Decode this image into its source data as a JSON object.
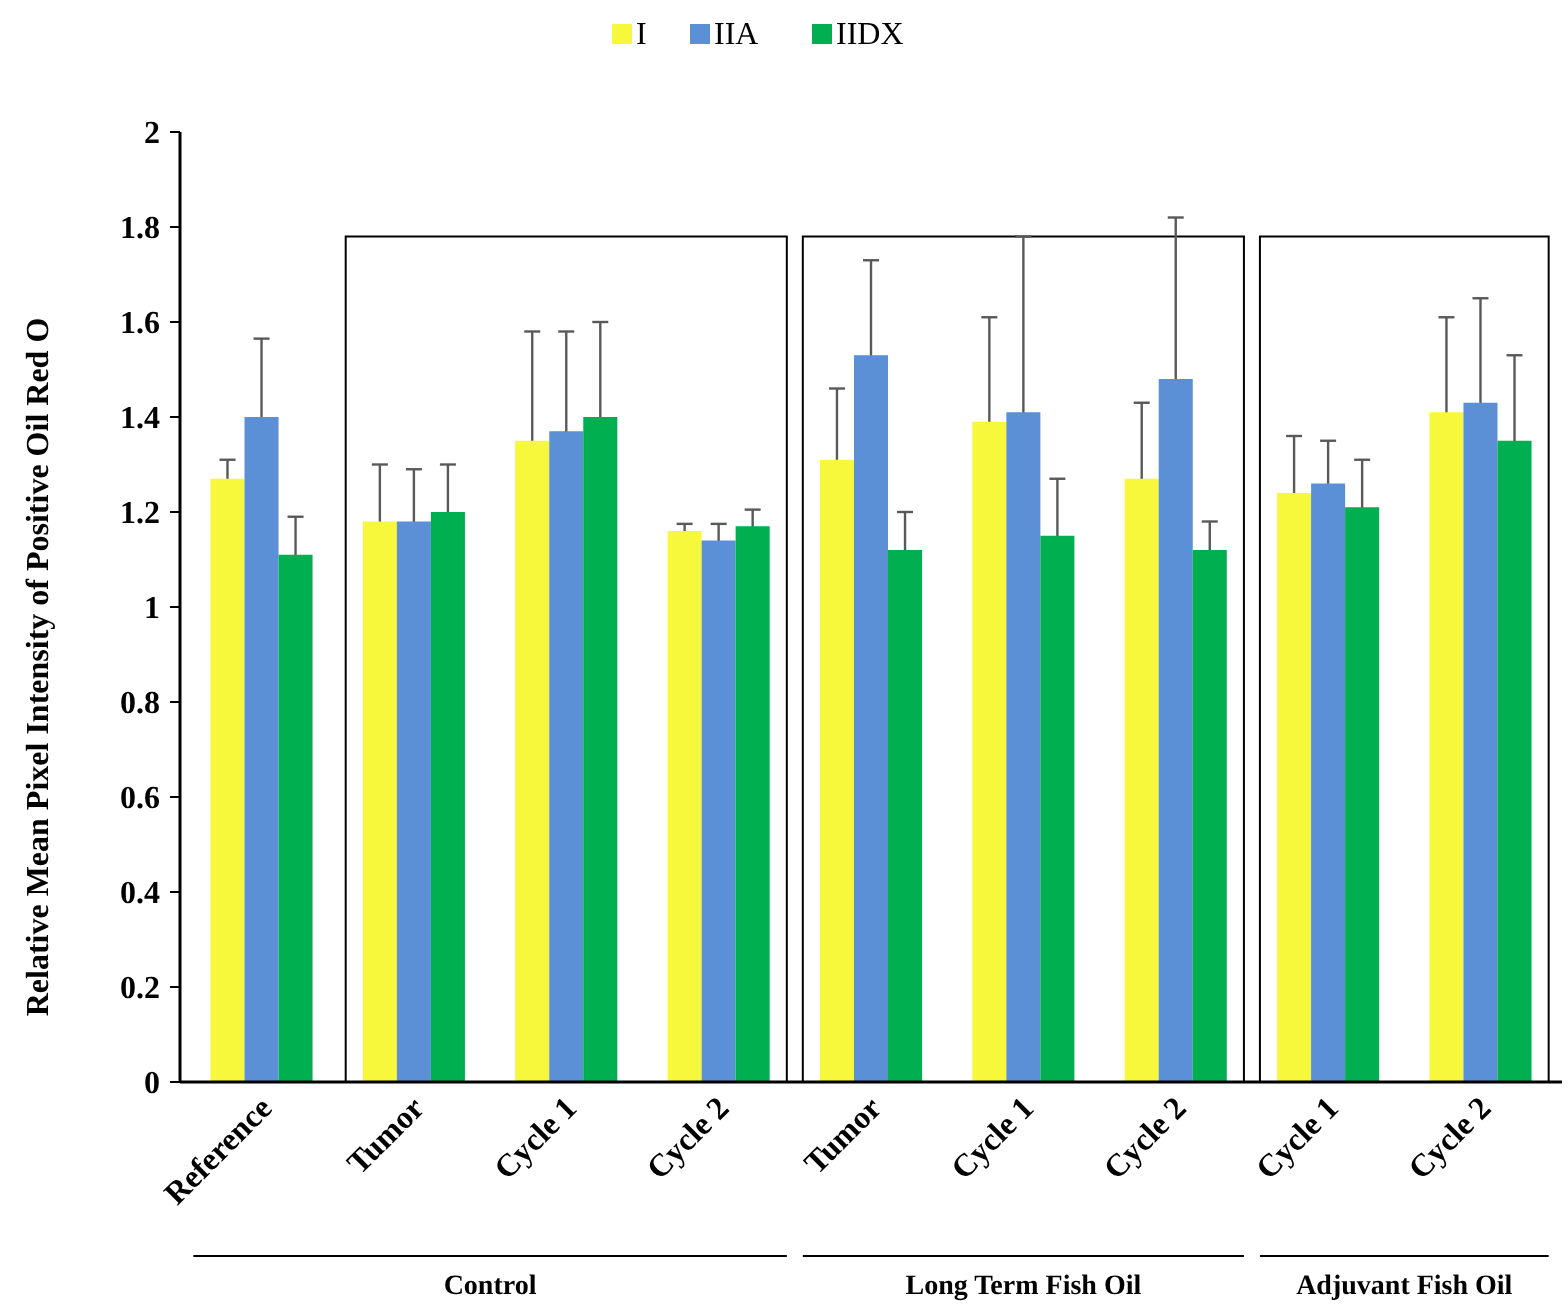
{
  "chart_data": {
    "type": "bar",
    "ylabel": "Relative Mean Pixel Intensity of  Positive Oil Red O",
    "categories": [
      "Reference",
      "Tumor",
      "Cycle 1",
      "Cycle 2",
      "Tumor",
      "Cycle 1",
      "Cycle 2",
      "Cycle 1",
      "Cycle 2"
    ],
    "series": [
      {
        "name": "I",
        "color": "#f7f73c",
        "values": [
          1.27,
          1.18,
          1.35,
          1.16,
          1.31,
          1.39,
          1.27,
          1.24,
          1.41
        ],
        "errors": [
          0.04,
          0.12,
          0.23,
          0.015,
          0.15,
          0.22,
          0.16,
          0.12,
          0.2
        ]
      },
      {
        "name": "IIA",
        "color": "#5b8fd6",
        "values": [
          1.4,
          1.18,
          1.37,
          1.14,
          1.53,
          1.41,
          1.48,
          1.26,
          1.43
        ],
        "errors": [
          0.165,
          0.11,
          0.21,
          0.035,
          0.2,
          0.37,
          0.34,
          0.09,
          0.22
        ]
      },
      {
        "name": "IIDX",
        "color": "#00b050",
        "values": [
          1.11,
          1.2,
          1.4,
          1.17,
          1.12,
          1.15,
          1.12,
          1.21,
          1.35
        ],
        "errors": [
          0.08,
          0.1,
          0.2,
          0.035,
          0.08,
          0.12,
          0.06,
          0.1,
          0.18
        ]
      }
    ],
    "ylim": [
      0,
      2
    ],
    "yticks": [
      0,
      0.2,
      0.4,
      0.6,
      0.8,
      1,
      1.2,
      1.4,
      1.6,
      1.8,
      2
    ],
    "grid": false,
    "legend": "top",
    "annotations": [
      "Control",
      "Long Term Fish Oil",
      "Adjuvant Fish Oil"
    ]
  }
}
